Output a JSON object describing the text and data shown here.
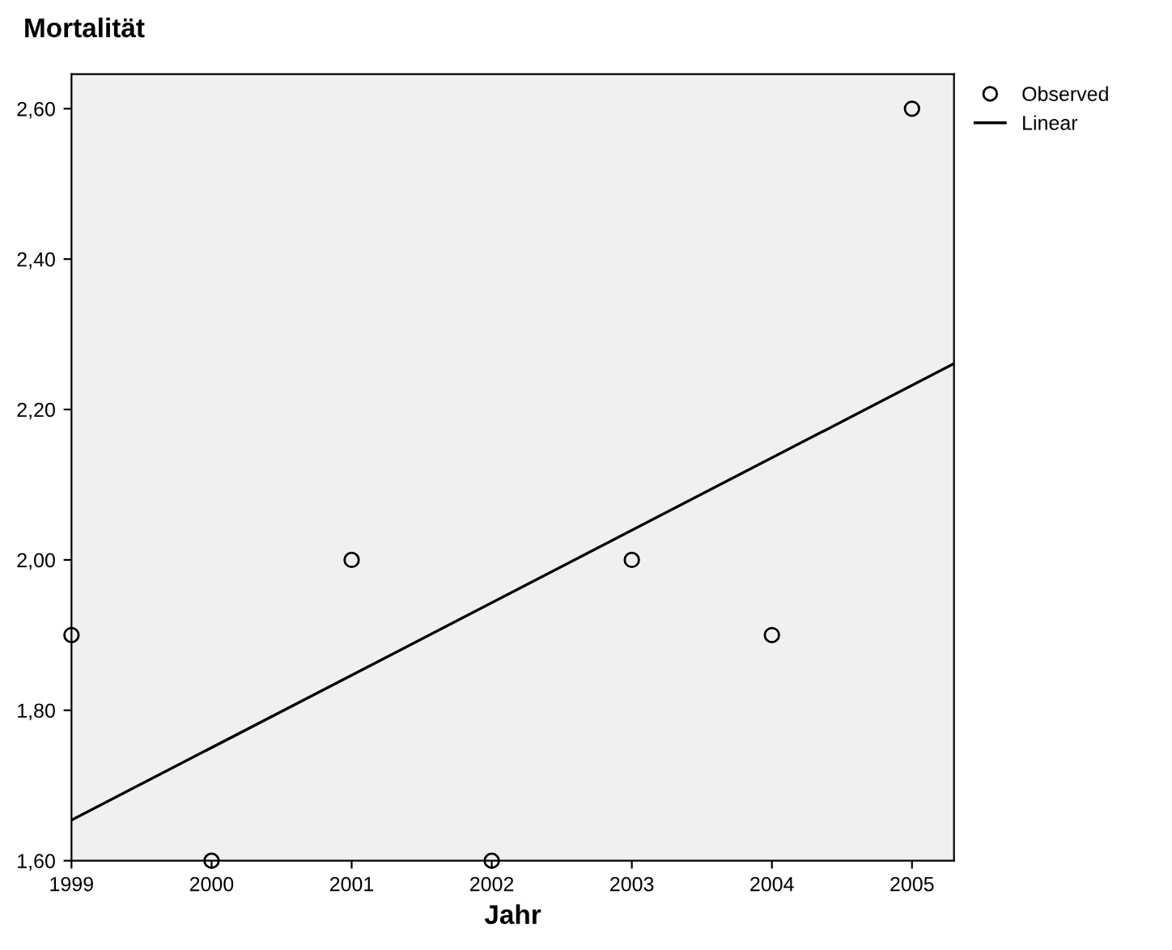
{
  "chart_data": {
    "type": "scatter",
    "title": "Mortalität",
    "xlabel": "Jahr",
    "series": [
      {
        "name": "Observed",
        "color": "#000000",
        "marker": "circle",
        "x": [
          1999,
          2000,
          2001,
          2002,
          2003,
          2004,
          2005
        ],
        "values": [
          1.9,
          1.6,
          2.0,
          1.6,
          2.0,
          1.9,
          2.6
        ]
      },
      {
        "name": "Linear",
        "type": "line",
        "color": "#000000",
        "line_style": "solid",
        "x": [
          1999,
          2005.3
        ],
        "values": [
          1.654,
          2.261
        ]
      }
    ],
    "xlim": [
      1999,
      2005.3
    ],
    "xticks": [
      1999,
      2000,
      2001,
      2002,
      2003,
      2004,
      2005
    ],
    "ylim": [
      1.6,
      2.646
    ],
    "yticks": [
      {
        "value": 1.6,
        "label": "1,60"
      },
      {
        "value": 1.8,
        "label": "1,80"
      },
      {
        "value": 2.0,
        "label": "2,00"
      },
      {
        "value": 2.2,
        "label": "2,20"
      },
      {
        "value": 2.4,
        "label": "2,40"
      },
      {
        "value": 2.6,
        "label": "2,60"
      }
    ],
    "grid": false,
    "legend": "top right"
  }
}
